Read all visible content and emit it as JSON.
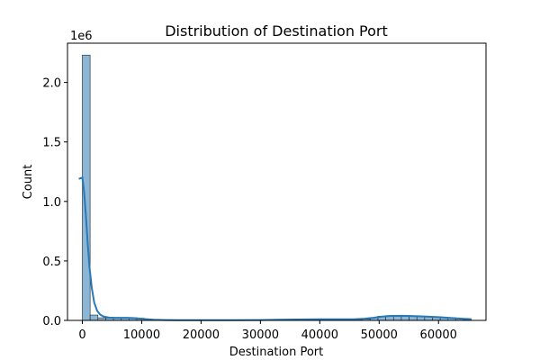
{
  "chart_data": {
    "type": "bar",
    "title": "Distribution of  Destination Port",
    "xlabel": "Destination Port",
    "ylabel": "Count",
    "y_offset_label": "1e6",
    "xlim": [
      -2500,
      68000
    ],
    "ylim": [
      0,
      2330000
    ],
    "x_ticks": [
      0,
      10000,
      20000,
      30000,
      40000,
      50000,
      60000
    ],
    "x_tick_labels": [
      "0",
      "10000",
      "20000",
      "30000",
      "40000",
      "50000",
      "60000"
    ],
    "y_ticks": [
      0,
      500000,
      1000000,
      1500000,
      2000000
    ],
    "y_tick_labels": [
      "0.0",
      "0.5",
      "1.0",
      "1.5",
      "2.0"
    ],
    "bin_width": 1310.7,
    "bin_starts": [
      0,
      1310.7,
      2621.4,
      3932.1,
      5242.8,
      6553.5,
      7864.2,
      9174.9,
      10485.6,
      11796.3,
      13107,
      14417.7,
      15728.4,
      17039.1,
      18349.8,
      19660.5,
      20971.2,
      22281.9,
      23592.6,
      24903.3,
      26214,
      27524.7,
      28835.4,
      30146.1,
      31456.8,
      32767.5,
      34078.2,
      35388.9,
      36699.6,
      38010.3,
      39321,
      40631.7,
      41942.4,
      43253.1,
      44563.8,
      45874.5,
      47185.2,
      48495.9,
      49806.6,
      51117.3,
      52428,
      53738.7,
      55049.4,
      56360.1,
      57670.8,
      58981.5,
      60292.2,
      61602.9,
      62913.6,
      64224.3
    ],
    "counts": [
      2230000,
      45000,
      22000,
      20000,
      22000,
      24000,
      22000,
      18000,
      8000,
      5000,
      4000,
      3000,
      3000,
      2000,
      2000,
      2000,
      2000,
      2000,
      2000,
      2000,
      2000,
      2000,
      2000,
      3000,
      4000,
      5000,
      6000,
      6000,
      6000,
      6000,
      6000,
      6000,
      6000,
      6000,
      6000,
      7000,
      10000,
      22000,
      35000,
      40000,
      40000,
      38000,
      36000,
      34000,
      32000,
      30000,
      28000,
      22000,
      14000,
      8000
    ],
    "kde_x": [
      -600,
      0,
      300,
      600,
      900,
      1200,
      1600,
      2000,
      2500,
      3000,
      3600,
      4500,
      5500,
      6500,
      7500,
      8500,
      9500,
      10500,
      12000,
      14000,
      16000,
      20000,
      25000,
      30000,
      33000,
      36000,
      40000,
      44000,
      46000,
      47500,
      49000,
      50500,
      52000,
      54000,
      56000,
      58000,
      60000,
      62000,
      64000,
      65535
    ],
    "kde_y": [
      1190000,
      1200000,
      1080000,
      880000,
      650000,
      450000,
      270000,
      150000,
      80000,
      48000,
      32000,
      24000,
      22000,
      22000,
      22000,
      20000,
      16000,
      11000,
      6000,
      3000,
      2000,
      2000,
      2000,
      3000,
      6000,
      8000,
      9000,
      9000,
      10000,
      14000,
      22000,
      32000,
      38000,
      39000,
      36000,
      32000,
      27000,
      21000,
      14000,
      10000
    ],
    "bar_fill": "#8bb6d6",
    "bar_edge": "#222222",
    "kde_color": "#2a78b5",
    "grid": false,
    "legend": "none"
  }
}
